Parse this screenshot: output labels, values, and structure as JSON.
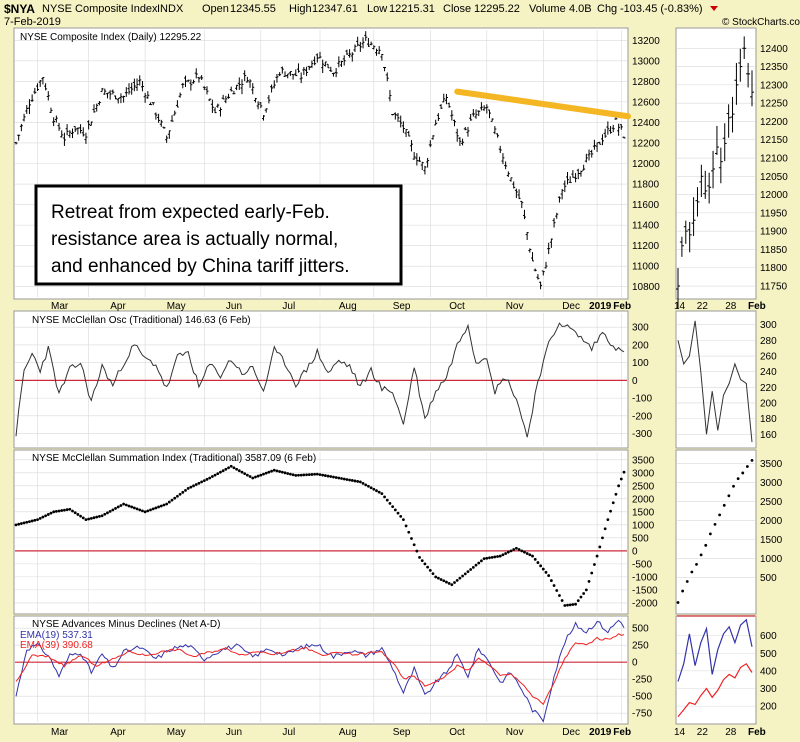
{
  "header": {
    "symbol": "$NYA",
    "name": "NYSE Composite Index",
    "exchange": "INDX",
    "date": "7-Feb-2019",
    "open_label": "Open",
    "open": "12345.55",
    "high_label": "High",
    "high": "12347.61",
    "low_label": "Low",
    "low": "12215.31",
    "close_label": "Close",
    "close": "12295.22",
    "volume_label": "Volume",
    "volume": "4.0B",
    "chg_label": "Chg",
    "chg": "-103.45 (-0.83%)",
    "watermark": "© StockCharts.com"
  },
  "annotation": {
    "lines": [
      "Retreat from expected early-Feb.",
      "resistance area is actually normal,",
      "and enhanced by China tariff jitters."
    ]
  },
  "colors": {
    "background": "#f5f2c4",
    "panel": "#ffffff",
    "grid": "#d9d9d9",
    "resistance_line": "#f4b623",
    "zero_line": "#cc2a3a",
    "ema19": "#3333aa",
    "ema39": "#ee2222",
    "price": "#000000"
  },
  "chart_data": [
    {
      "id": "price",
      "type": "ohlc",
      "title": "NYSE Composite Index (Daily) 12295.22",
      "x_labels": [
        "Mar",
        "Apr",
        "May",
        "Jun",
        "Jul",
        "Aug",
        "Sep",
        "Oct",
        "Nov",
        "Dec",
        "2019",
        "Feb"
      ],
      "y_ticks": [
        10800,
        11000,
        11200,
        11400,
        11600,
        11800,
        12000,
        12200,
        12400,
        12600,
        12800,
        13000,
        13200
      ],
      "ylim": [
        10700,
        13300
      ],
      "anchors": [
        [
          0,
          12200
        ],
        [
          5,
          12600
        ],
        [
          10,
          12850
        ],
        [
          14,
          12450
        ],
        [
          18,
          12250
        ],
        [
          22,
          12350
        ],
        [
          26,
          12300
        ],
        [
          32,
          12700
        ],
        [
          40,
          12650
        ],
        [
          46,
          12800
        ],
        [
          52,
          12500
        ],
        [
          56,
          12250
        ],
        [
          62,
          12750
        ],
        [
          68,
          12850
        ],
        [
          74,
          12500
        ],
        [
          80,
          12700
        ],
        [
          86,
          12850
        ],
        [
          92,
          12500
        ],
        [
          98,
          12900
        ],
        [
          106,
          12850
        ],
        [
          112,
          13050
        ],
        [
          118,
          12900
        ],
        [
          124,
          13050
        ],
        [
          130,
          13200
        ],
        [
          136,
          13100
        ],
        [
          140,
          12500
        ],
        [
          144,
          12350
        ],
        [
          148,
          12100
        ],
        [
          152,
          11950
        ],
        [
          156,
          12400
        ],
        [
          160,
          12650
        ],
        [
          165,
          12200
        ],
        [
          170,
          12450
        ],
        [
          175,
          12550
        ],
        [
          180,
          12150
        ],
        [
          184,
          11850
        ],
        [
          188,
          11600
        ],
        [
          192,
          11050
        ],
        [
          195,
          10800
        ],
        [
          198,
          11150
        ],
        [
          203,
          11750
        ],
        [
          208,
          11900
        ],
        [
          213,
          12050
        ],
        [
          218,
          12250
        ],
        [
          223,
          12400
        ],
        [
          226,
          12280
        ]
      ],
      "resistance_line": {
        "from": [
          164,
          12700
        ],
        "to": [
          229,
          12460
        ]
      }
    },
    {
      "id": "price_zoom",
      "type": "ohlc",
      "x_labels": [
        "14",
        "22",
        "28",
        "Feb"
      ],
      "y_ticks": [
        11750,
        11800,
        11850,
        11900,
        11950,
        12000,
        12050,
        12100,
        12150,
        12200,
        12250,
        12300,
        12350,
        12400
      ],
      "ylim": [
        11720,
        12450
      ],
      "closes": [
        11750,
        11860,
        11900,
        11890,
        11930,
        11980,
        12050,
        12010,
        12020,
        12070,
        12130,
        12090,
        12140,
        12210,
        12220,
        12300,
        12350,
        12400,
        12330,
        12280
      ]
    },
    {
      "id": "osc",
      "type": "line",
      "title": "NYSE McClellan Osc (Traditional) 146.63 (6 Feb)",
      "y_ticks": [
        -300,
        -200,
        -100,
        0,
        100,
        200,
        300
      ],
      "ylim": [
        -370,
        380
      ],
      "zero_line": 0,
      "anchors": [
        [
          0,
          -300
        ],
        [
          3,
          50
        ],
        [
          6,
          150
        ],
        [
          9,
          60
        ],
        [
          12,
          180
        ],
        [
          16,
          -80
        ],
        [
          20,
          60
        ],
        [
          24,
          100
        ],
        [
          28,
          -120
        ],
        [
          32,
          80
        ],
        [
          36,
          -30
        ],
        [
          40,
          100
        ],
        [
          44,
          200
        ],
        [
          48,
          120
        ],
        [
          52,
          90
        ],
        [
          56,
          -50
        ],
        [
          60,
          130
        ],
        [
          64,
          160
        ],
        [
          68,
          -40
        ],
        [
          72,
          90
        ],
        [
          76,
          30
        ],
        [
          80,
          120
        ],
        [
          84,
          40
        ],
        [
          88,
          70
        ],
        [
          92,
          -60
        ],
        [
          96,
          170
        ],
        [
          100,
          100
        ],
        [
          104,
          -20
        ],
        [
          108,
          60
        ],
        [
          112,
          160
        ],
        [
          116,
          40
        ],
        [
          120,
          110
        ],
        [
          124,
          80
        ],
        [
          128,
          -40
        ],
        [
          132,
          60
        ],
        [
          136,
          -50
        ],
        [
          140,
          -60
        ],
        [
          144,
          -250
        ],
        [
          148,
          80
        ],
        [
          152,
          -220
        ],
        [
          156,
          -60
        ],
        [
          160,
          20
        ],
        [
          164,
          200
        ],
        [
          168,
          320
        ],
        [
          171,
          100
        ],
        [
          175,
          140
        ],
        [
          178,
          -60
        ],
        [
          182,
          20
        ],
        [
          186,
          -100
        ],
        [
          190,
          -320
        ],
        [
          194,
          0
        ],
        [
          198,
          200
        ],
        [
          202,
          330
        ],
        [
          206,
          290
        ],
        [
          210,
          240
        ],
        [
          214,
          180
        ],
        [
          218,
          270
        ],
        [
          222,
          200
        ],
        [
          226,
          147
        ]
      ]
    },
    {
      "id": "osc_zoom",
      "type": "line",
      "y_ticks": [
        160,
        180,
        200,
        220,
        240,
        260,
        280,
        300
      ],
      "ylim": [
        145,
        315
      ],
      "values": [
        280,
        250,
        260,
        305,
        240,
        160,
        215,
        165,
        210,
        225,
        250,
        230,
        225,
        150
      ]
    },
    {
      "id": "summation",
      "type": "scatter",
      "title": "NYSE McClellan Summation Index (Traditional) 3587.09 (6 Feb)",
      "y_ticks": [
        -2000,
        -1500,
        -1000,
        -500,
        0,
        500,
        1000,
        1500,
        2000,
        2500,
        3000,
        3500
      ],
      "ylim": [
        -2350,
        3800
      ],
      "zero_line": 0,
      "anchors": [
        [
          0,
          1000
        ],
        [
          8,
          1200
        ],
        [
          14,
          1500
        ],
        [
          20,
          1600
        ],
        [
          26,
          1200
        ],
        [
          32,
          1350
        ],
        [
          40,
          1800
        ],
        [
          48,
          1500
        ],
        [
          56,
          1800
        ],
        [
          64,
          2400
        ],
        [
          72,
          2800
        ],
        [
          80,
          3250
        ],
        [
          88,
          2800
        ],
        [
          96,
          3100
        ],
        [
          104,
          2900
        ],
        [
          112,
          2950
        ],
        [
          120,
          2800
        ],
        [
          128,
          2650
        ],
        [
          136,
          2200
        ],
        [
          144,
          1200
        ],
        [
          150,
          -250
        ],
        [
          156,
          -1000
        ],
        [
          162,
          -1300
        ],
        [
          168,
          -800
        ],
        [
          174,
          -300
        ],
        [
          180,
          -200
        ],
        [
          186,
          100
        ],
        [
          192,
          -200
        ],
        [
          198,
          -950
        ],
        [
          204,
          -2100
        ],
        [
          208,
          -2050
        ],
        [
          212,
          -1500
        ],
        [
          216,
          -200
        ],
        [
          220,
          1200
        ],
        [
          224,
          2500
        ],
        [
          228,
          3550
        ]
      ]
    },
    {
      "id": "summation_zoom",
      "type": "scatter",
      "y_ticks": [
        500,
        1000,
        1500,
        2000,
        2500,
        3000,
        3500
      ],
      "ylim": [
        -400,
        3800
      ],
      "values": [
        -150,
        150,
        400,
        650,
        850,
        1100,
        1350,
        1650,
        1900,
        2150,
        2400,
        2650,
        2900,
        3100,
        3250,
        3420,
        3580
      ]
    },
    {
      "id": "adv_dec",
      "type": "line",
      "title": "NYSE Advances Minus Declines (Net A-D)",
      "legend": [
        {
          "name": "EMA(19) 537.31",
          "color": "#3333aa"
        },
        {
          "name": "EMA(39) 390.68",
          "color": "#ee2222"
        }
      ],
      "x_labels": [
        "Mar",
        "Apr",
        "May",
        "Jun",
        "Jul",
        "Aug",
        "Sep",
        "Oct",
        "Nov",
        "Dec",
        "2019",
        "Feb"
      ],
      "y_ticks": [
        -750,
        -500,
        -250,
        0,
        250,
        500
      ],
      "ylim": [
        -880,
        650
      ],
      "zero_line": 0,
      "series_anchors": [
        [
          [
            0,
            -500
          ],
          [
            4,
            200
          ],
          [
            8,
            250
          ],
          [
            12,
            100
          ],
          [
            16,
            -200
          ],
          [
            20,
            100
          ],
          [
            24,
            150
          ],
          [
            28,
            -150
          ],
          [
            32,
            120
          ],
          [
            36,
            -100
          ],
          [
            40,
            150
          ],
          [
            46,
            220
          ],
          [
            52,
            50
          ],
          [
            58,
            200
          ],
          [
            64,
            250
          ],
          [
            70,
            50
          ],
          [
            76,
            180
          ],
          [
            82,
            240
          ],
          [
            88,
            80
          ],
          [
            94,
            200
          ],
          [
            100,
            100
          ],
          [
            106,
            220
          ],
          [
            112,
            260
          ],
          [
            118,
            80
          ],
          [
            124,
            180
          ],
          [
            130,
            100
          ],
          [
            136,
            200
          ],
          [
            140,
            -80
          ],
          [
            144,
            -450
          ],
          [
            148,
            -100
          ],
          [
            152,
            -500
          ],
          [
            156,
            -300
          ],
          [
            160,
            -150
          ],
          [
            164,
            100
          ],
          [
            168,
            -200
          ],
          [
            172,
            200
          ],
          [
            176,
            0
          ],
          [
            180,
            -300
          ],
          [
            184,
            -150
          ],
          [
            188,
            -400
          ],
          [
            192,
            -700
          ],
          [
            196,
            -850
          ],
          [
            200,
            -200
          ],
          [
            204,
            300
          ],
          [
            208,
            550
          ],
          [
            212,
            450
          ],
          [
            216,
            600
          ],
          [
            220,
            450
          ],
          [
            224,
            620
          ],
          [
            226,
            537
          ]
        ],
        [
          [
            0,
            -300
          ],
          [
            6,
            100
          ],
          [
            12,
            80
          ],
          [
            18,
            -50
          ],
          [
            24,
            100
          ],
          [
            30,
            -50
          ],
          [
            36,
            40
          ],
          [
            42,
            160
          ],
          [
            48,
            100
          ],
          [
            54,
            150
          ],
          [
            60,
            190
          ],
          [
            66,
            80
          ],
          [
            72,
            150
          ],
          [
            78,
            200
          ],
          [
            84,
            110
          ],
          [
            90,
            160
          ],
          [
            96,
            120
          ],
          [
            102,
            170
          ],
          [
            108,
            200
          ],
          [
            114,
            100
          ],
          [
            120,
            140
          ],
          [
            126,
            110
          ],
          [
            132,
            140
          ],
          [
            136,
            150
          ],
          [
            140,
            0
          ],
          [
            144,
            -250
          ],
          [
            148,
            -200
          ],
          [
            152,
            -350
          ],
          [
            156,
            -280
          ],
          [
            160,
            -200
          ],
          [
            164,
            -50
          ],
          [
            168,
            -120
          ],
          [
            172,
            50
          ],
          [
            176,
            -40
          ],
          [
            180,
            -200
          ],
          [
            184,
            -180
          ],
          [
            188,
            -300
          ],
          [
            192,
            -500
          ],
          [
            196,
            -620
          ],
          [
            200,
            -300
          ],
          [
            204,
            60
          ],
          [
            208,
            280
          ],
          [
            212,
            250
          ],
          [
            216,
            350
          ],
          [
            220,
            330
          ],
          [
            224,
            420
          ],
          [
            226,
            391
          ]
        ]
      ]
    },
    {
      "id": "adv_dec_zoom",
      "type": "line",
      "x_labels": [
        "14",
        "22",
        "28",
        "Feb"
      ],
      "y_ticks": [
        200,
        300,
        400,
        500,
        600
      ],
      "ylim": [
        110,
        700
      ],
      "series": [
        {
          "name": "EMA(19)",
          "color": "#3333aa",
          "values": [
            340,
            440,
            610,
            430,
            560,
            640,
            380,
            520,
            610,
            650,
            560,
            660,
            690,
            537
          ]
        },
        {
          "name": "EMA(39)",
          "color": "#ee2222",
          "values": [
            140,
            180,
            220,
            210,
            260,
            300,
            250,
            290,
            350,
            380,
            360,
            420,
            440,
            391
          ]
        }
      ]
    }
  ]
}
